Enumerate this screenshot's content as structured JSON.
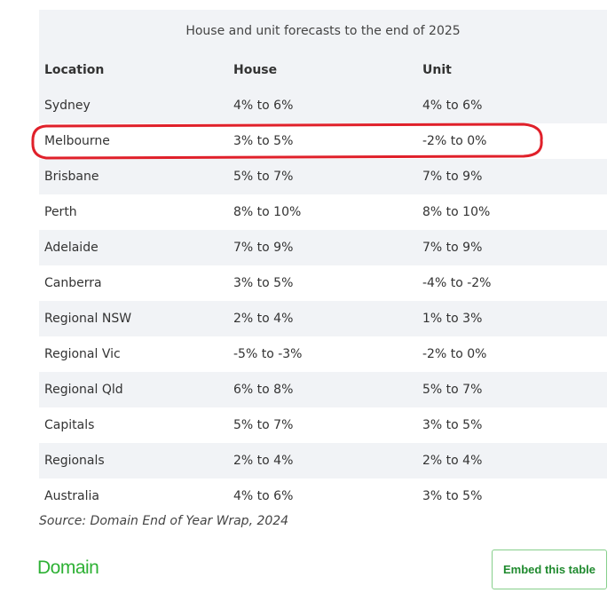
{
  "table": {
    "caption": "House and unit forecasts to the end of 2025",
    "headers": [
      "Location",
      "House",
      "Unit"
    ],
    "rows": [
      [
        "Sydney",
        "4% to 6%",
        "4% to 6%"
      ],
      [
        "Melbourne",
        "3% to 5%",
        "-2% to 0%"
      ],
      [
        "Brisbane",
        "5% to 7%",
        "7% to 9%"
      ],
      [
        "Perth",
        "8% to 10%",
        "8% to 10%"
      ],
      [
        "Adelaide",
        "7% to 9%",
        "7% to 9%"
      ],
      [
        "Canberra",
        "3% to 5%",
        "-4% to -2%"
      ],
      [
        "Regional NSW",
        "2% to 4%",
        "1% to 3%"
      ],
      [
        "Regional Vic",
        "-5% to -3%",
        "-2% to 0%"
      ],
      [
        "Regional Qld",
        "6% to 8%",
        "5% to 7%"
      ],
      [
        "Capitals",
        "5% to 7%",
        "3% to 5%"
      ],
      [
        "Regionals",
        "2% to 4%",
        "2% to 4%"
      ],
      [
        "Australia",
        "4% to 6%",
        "3% to 5%"
      ]
    ],
    "highlighted_row": "Melbourne"
  },
  "source": "Source: Domain End of Year Wrap, 2024",
  "brand": {
    "logo_text": "Domain",
    "color": "#2eb135"
  },
  "embed_button": {
    "label": "Embed this table"
  },
  "colors": {
    "row_shade": "#f1f3f6",
    "highlight": "#e0202a"
  }
}
